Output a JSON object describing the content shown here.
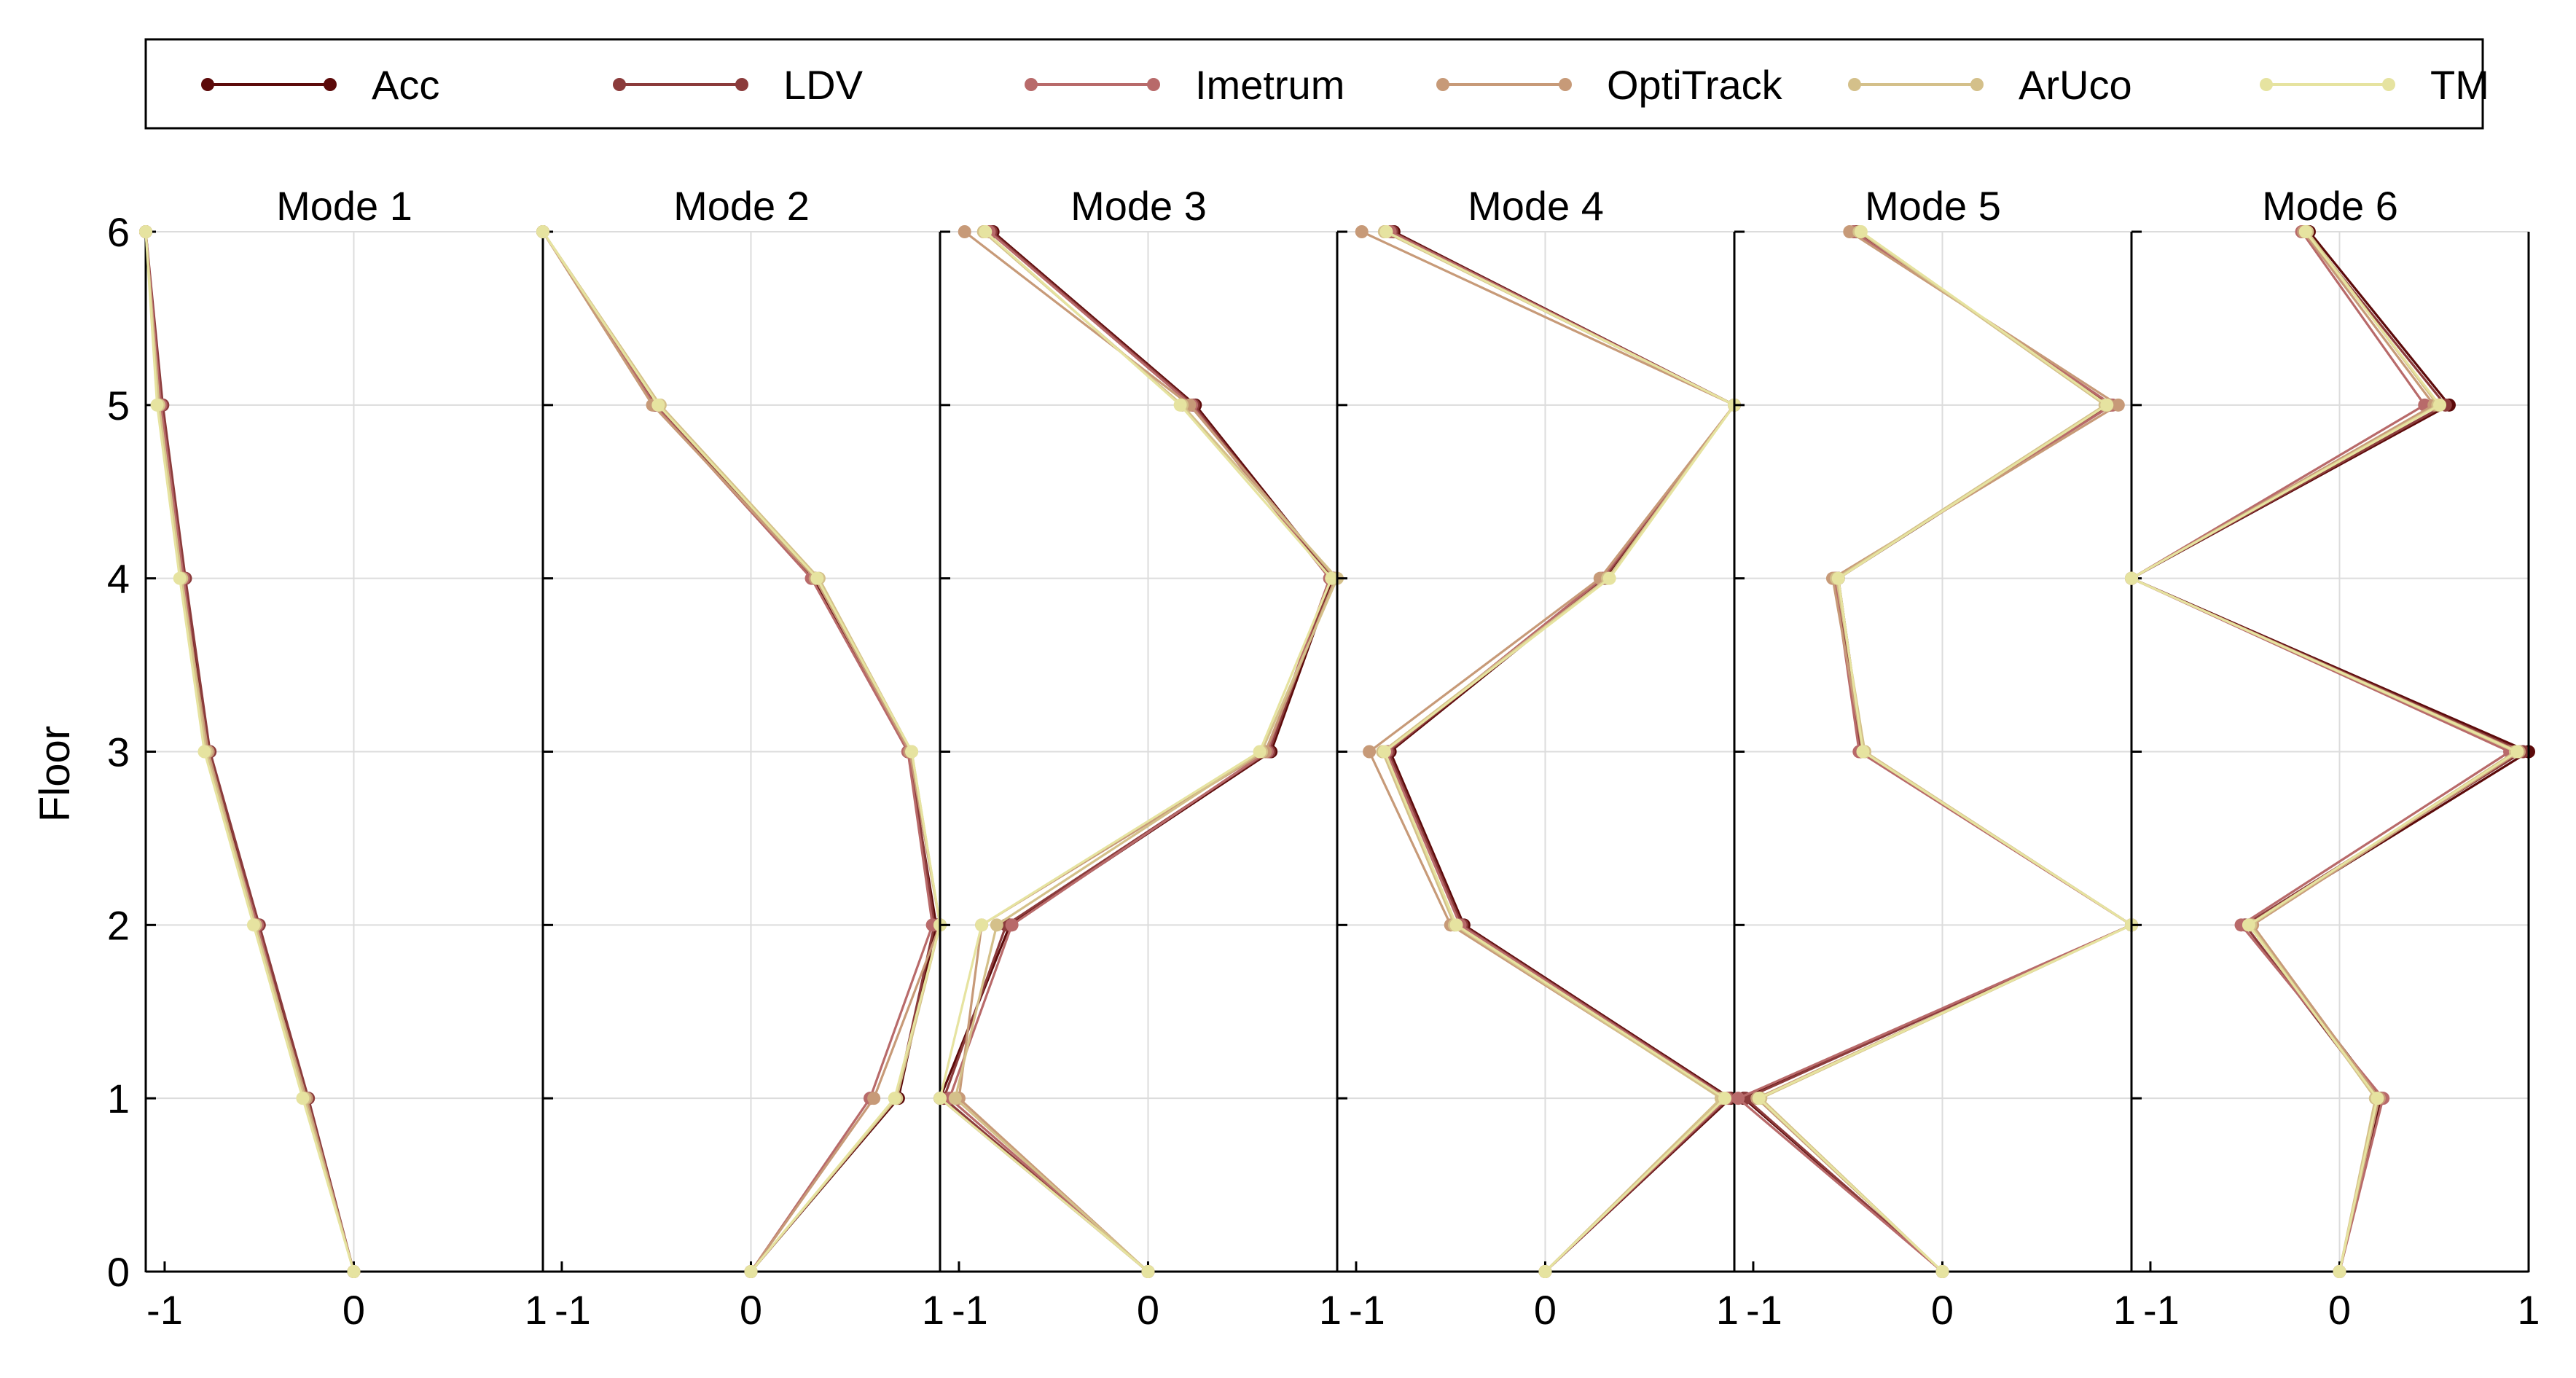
{
  "chart_data": {
    "type": "line",
    "ylabel": "Floor",
    "floors": [
      0,
      1,
      2,
      3,
      4,
      5,
      6
    ],
    "ylim": [
      0,
      6
    ],
    "xlim": [
      -1.1,
      1
    ],
    "x_tick_labels": [
      "-1",
      "0",
      "1"
    ],
    "y_tick_labels": [
      "0",
      "1",
      "2",
      "3",
      "4",
      "5",
      "6"
    ],
    "grid": true,
    "legend_position": "top",
    "legend": [
      {
        "name": "Acc",
        "color": "#5c0a0a"
      },
      {
        "name": "LDV",
        "color": "#8b3b3b"
      },
      {
        "name": "Imetrum",
        "color": "#b86a6a"
      },
      {
        "name": "OptiTrack",
        "color": "#c79a78"
      },
      {
        "name": "ArUco",
        "color": "#d4c08a"
      },
      {
        "name": "TM",
        "color": "#e6e3a0"
      }
    ],
    "panels": [
      {
        "title": "Mode 1",
        "series": [
          {
            "name": "Acc",
            "x": [
              0,
              -0.25,
              -0.5,
              -0.77,
              -0.9,
              -1.02,
              -1.1
            ]
          },
          {
            "name": "LDV",
            "x": [
              0,
              -0.24,
              -0.5,
              -0.76,
              -0.89,
              -1.01,
              -1.1
            ]
          },
          {
            "name": "Imetrum",
            "x": [
              0,
              -0.26,
              -0.51,
              -0.78,
              -0.9,
              -1.02,
              -1.1
            ]
          },
          {
            "name": "OptiTrack",
            "x": [
              0,
              -0.25,
              -0.52,
              -0.77,
              -0.91,
              -1.03,
              -1.1
            ]
          },
          {
            "name": "ArUco",
            "x": [
              0,
              -0.26,
              -0.52,
              -0.78,
              -0.91,
              -1.03,
              -1.1
            ]
          },
          {
            "name": "TM",
            "x": [
              0,
              -0.27,
              -0.53,
              -0.79,
              -0.92,
              -1.04,
              -1.1
            ]
          }
        ]
      },
      {
        "title": "Mode 2",
        "series": [
          {
            "name": "Acc",
            "x": [
              0,
              0.78,
              0.98,
              0.83,
              0.33,
              -0.51,
              -1.1
            ]
          },
          {
            "name": "LDV",
            "x": [
              0,
              0.77,
              0.97,
              0.84,
              0.34,
              -0.5,
              -1.1
            ]
          },
          {
            "name": "Imetrum",
            "x": [
              0,
              0.63,
              0.96,
              0.83,
              0.32,
              -0.51,
              -1.1
            ]
          },
          {
            "name": "OptiTrack",
            "x": [
              0,
              0.65,
              1.0,
              0.84,
              0.34,
              -0.52,
              -1.1
            ]
          },
          {
            "name": "ArUco",
            "x": [
              0,
              0.77,
              1.0,
              0.85,
              0.36,
              -0.48,
              -1.1
            ]
          },
          {
            "name": "TM",
            "x": [
              0,
              0.76,
              1.0,
              0.85,
              0.35,
              -0.49,
              -1.1
            ]
          }
        ]
      },
      {
        "title": "Mode 3",
        "series": [
          {
            "name": "Acc",
            "x": [
              0,
              -1.1,
              -0.73,
              0.65,
              0.98,
              0.25,
              -0.82
            ]
          },
          {
            "name": "LDV",
            "x": [
              0,
              -1.08,
              -0.75,
              0.64,
              0.97,
              0.24,
              -0.83
            ]
          },
          {
            "name": "Imetrum",
            "x": [
              0,
              -1.05,
              -0.72,
              0.63,
              0.96,
              0.23,
              -0.84
            ]
          },
          {
            "name": "OptiTrack",
            "x": [
              0,
              -1.0,
              -0.88,
              0.62,
              0.99,
              0.22,
              -0.97
            ]
          },
          {
            "name": "ArUco",
            "x": [
              0,
              -1.02,
              -0.8,
              0.6,
              1.0,
              0.18,
              -0.87
            ]
          },
          {
            "name": "TM",
            "x": [
              0,
              -1.1,
              -0.88,
              0.59,
              0.97,
              0.17,
              -0.86
            ]
          }
        ]
      },
      {
        "title": "Mode 4",
        "series": [
          {
            "name": "Acc",
            "x": [
              0,
              0.98,
              -0.43,
              -0.82,
              0.32,
              1.0,
              -0.8
            ]
          },
          {
            "name": "LDV",
            "x": [
              0,
              0.97,
              -0.44,
              -0.83,
              0.31,
              1.0,
              -0.81
            ]
          },
          {
            "name": "Imetrum",
            "x": [
              0,
              0.96,
              -0.45,
              -0.84,
              0.3,
              1.0,
              -0.82
            ]
          },
          {
            "name": "OptiTrack",
            "x": [
              0,
              0.94,
              -0.5,
              -0.93,
              0.29,
              1.0,
              -0.97
            ]
          },
          {
            "name": "ArUco",
            "x": [
              0,
              0.93,
              -0.48,
              -0.86,
              0.33,
              1.0,
              -0.85
            ]
          },
          {
            "name": "TM",
            "x": [
              0,
              0.95,
              -0.47,
              -0.85,
              0.34,
              1.0,
              -0.84
            ]
          }
        ]
      },
      {
        "title": "Mode 5",
        "series": [
          {
            "name": "Acc",
            "x": [
              0,
              -1.05,
              1.0,
              -0.42,
              -0.55,
              0.88,
              -0.45
            ]
          },
          {
            "name": "LDV",
            "x": [
              0,
              -1.04,
              1.0,
              -0.43,
              -0.56,
              0.89,
              -0.46
            ]
          },
          {
            "name": "Imetrum",
            "x": [
              0,
              -1.08,
              1.0,
              -0.44,
              -0.57,
              0.9,
              -0.47
            ]
          },
          {
            "name": "OptiTrack",
            "x": [
              0,
              -0.98,
              1.0,
              -0.42,
              -0.58,
              0.93,
              -0.49
            ]
          },
          {
            "name": "ArUco",
            "x": [
              0,
              -0.96,
              1.0,
              -0.41,
              -0.56,
              0.86,
              -0.44
            ]
          },
          {
            "name": "TM",
            "x": [
              0,
              -0.97,
              1.0,
              -0.42,
              -0.55,
              0.87,
              -0.43
            ]
          }
        ]
      },
      {
        "title": "Mode 6",
        "series": [
          {
            "name": "Acc",
            "x": [
              0,
              0.22,
              -0.48,
              1.0,
              -1.1,
              0.58,
              -0.16
            ]
          },
          {
            "name": "LDV",
            "x": [
              0,
              0.2,
              -0.5,
              0.97,
              -1.1,
              0.56,
              -0.18
            ]
          },
          {
            "name": "Imetrum",
            "x": [
              0,
              0.23,
              -0.52,
              0.9,
              -1.1,
              0.45,
              -0.2
            ]
          },
          {
            "name": "OptiTrack",
            "x": [
              0,
              0.21,
              -0.46,
              0.95,
              -1.1,
              0.5,
              -0.19
            ]
          },
          {
            "name": "ArUco",
            "x": [
              0,
              0.19,
              -0.47,
              0.93,
              -1.1,
              0.52,
              -0.17
            ]
          },
          {
            "name": "TM",
            "x": [
              0,
              0.2,
              -0.48,
              0.94,
              -1.1,
              0.53,
              -0.18
            ]
          }
        ]
      }
    ]
  }
}
